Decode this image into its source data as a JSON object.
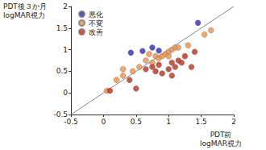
{
  "chart_data": {
    "type": "scatter",
    "x_label": "PDT前\nlogMAR視力",
    "y_label": "PDT後３か月\nlogMAR視力",
    "xlim": [
      -0.5,
      2
    ],
    "xticks": [
      -0.5,
      0,
      0.5,
      1,
      1.5,
      2
    ],
    "ylim": [
      -0.5,
      2
    ],
    "yticks": [
      -0.5,
      0,
      0.5,
      1,
      1.5,
      2
    ],
    "grid": false,
    "legend": "upper left",
    "marker": "circle",
    "reference_line": {
      "x": [
        -0.5,
        2
      ],
      "values": [
        -0.5,
        2
      ]
    },
    "series": [
      {
        "name": "悪化",
        "color": "#2a2ab8",
        "x": [
          0.42,
          0.6,
          0.75,
          0.85,
          1.45
        ],
        "values": [
          0.93,
          0.97,
          1.05,
          0.98,
          1.62
        ]
      },
      {
        "name": "不変",
        "color": "#e8904a",
        "x": [
          0.05,
          0.2,
          0.3,
          0.3,
          0.45,
          0.55,
          0.65,
          0.7,
          0.8,
          0.85,
          0.9,
          0.95,
          1.0,
          1.05,
          1.1,
          1.15,
          1.3,
          1.55,
          1.65,
          0.75,
          1.0
        ],
        "values": [
          0.05,
          0.3,
          0.4,
          0.55,
          0.5,
          0.6,
          0.75,
          0.9,
          0.85,
          0.8,
          0.85,
          0.9,
          0.95,
          1.0,
          1.05,
          1.05,
          1.1,
          1.35,
          1.45,
          0.7,
          0.85
        ]
      },
      {
        "name": "改善",
        "color": "#b8301c",
        "x": [
          0.1,
          0.5,
          0.4,
          0.65,
          0.8,
          0.85,
          0.9,
          1.0,
          1.05,
          1.1,
          1.15,
          1.2,
          1.25,
          1.35,
          1.4,
          1.05,
          0.75
        ],
        "values": [
          0.05,
          0.1,
          0.3,
          0.55,
          0.5,
          0.65,
          0.45,
          0.55,
          0.7,
          0.6,
          0.75,
          0.7,
          0.85,
          0.6,
          0.95,
          0.4,
          0.6
        ]
      }
    ]
  }
}
